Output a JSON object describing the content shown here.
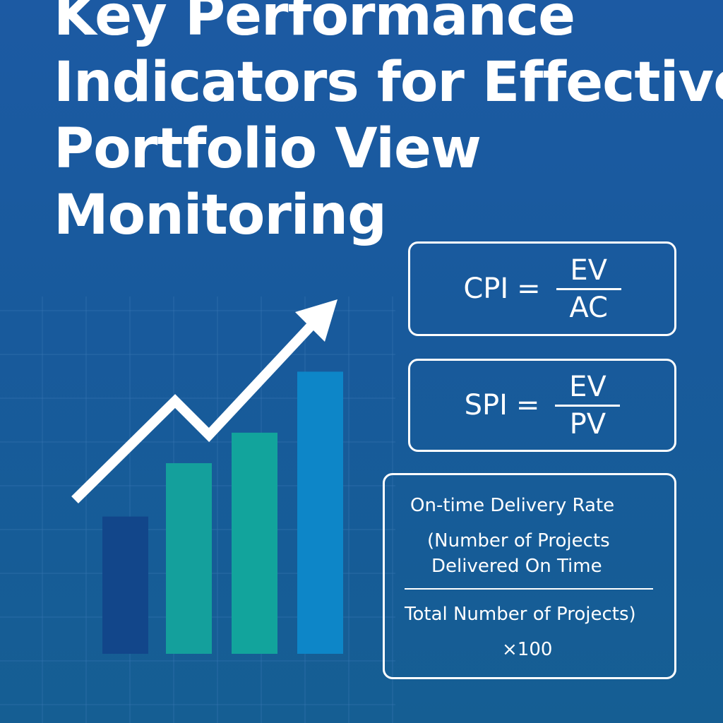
{
  "title": {
    "lines": [
      "Key Performance",
      "Indicators for Effective",
      "Portfolio View",
      "Monitoring"
    ]
  },
  "formulas": {
    "cpi": {
      "name": "CPI",
      "equals": "=",
      "numerator": "EV",
      "denominator": "AC"
    },
    "spi": {
      "name": "SPI",
      "equals": "=",
      "numerator": "EV",
      "denominator": "PV"
    }
  },
  "on_time_delivery": {
    "title": "On-time Delivery Rate",
    "numerator_line1": "(Number of Projects",
    "numerator_line2": "Delivered On Time",
    "denominator": "Total Number of Projects)",
    "multiplier": "×100"
  },
  "graphic": {
    "bars": [
      {
        "value": 0.36,
        "color": "#12468a"
      },
      {
        "value": 0.5,
        "color": "#14a09c"
      },
      {
        "value": 0.58,
        "color": "#12a49c"
      },
      {
        "value": 0.74,
        "color": "#0d86c8"
      }
    ],
    "arrow_color": "#ffffff",
    "grid_color": "#3a78b4"
  }
}
